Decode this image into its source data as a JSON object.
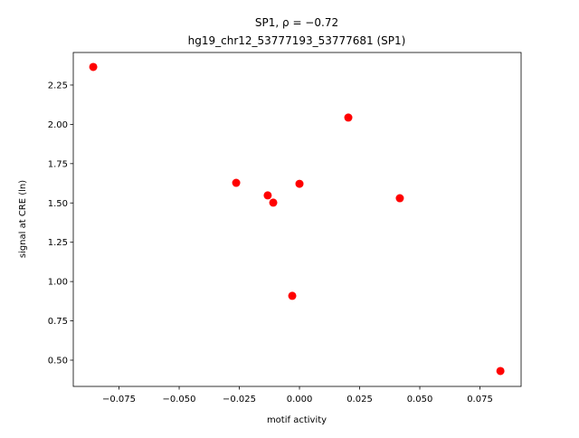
{
  "chart_data": {
    "type": "scatter",
    "title": "SP1, ρ = −0.72",
    "subtitle": "hg19_chr12_53777193_53777681 (SP1)",
    "x_label": "motif activity",
    "y_label": "signal at CRE (ln)",
    "color": "#ff0000",
    "x": [
      -0.0857,
      0.0203,
      -0.0263,
      -0.0132,
      -0.0109,
      0.0,
      0.0417,
      -0.003,
      0.0835
    ],
    "values": [
      2.365,
      2.043,
      1.628,
      1.548,
      1.502,
      1.622,
      1.53,
      0.909,
      0.431
    ],
    "xlim": [
      -0.094,
      0.0921
    ],
    "ylim": [
      0.333,
      2.457
    ],
    "xticks": [
      {
        "value": -0.075,
        "label": "−0.075"
      },
      {
        "value": -0.05,
        "label": "−0.050"
      },
      {
        "value": -0.025,
        "label": "−0.025"
      },
      {
        "value": 0,
        "label": "0.000"
      },
      0.025,
      {
        "value": 0.05,
        "label": "0.050"
      },
      0.075
    ],
    "yticks": [
      {
        "value": 0.5,
        "label": "0.50"
      },
      0.75,
      {
        "value": 1,
        "label": "1.00"
      },
      1.25,
      {
        "value": 1.5,
        "label": "1.50"
      },
      1.75,
      {
        "value": 2,
        "label": "2.00"
      },
      2.25
    ]
  }
}
